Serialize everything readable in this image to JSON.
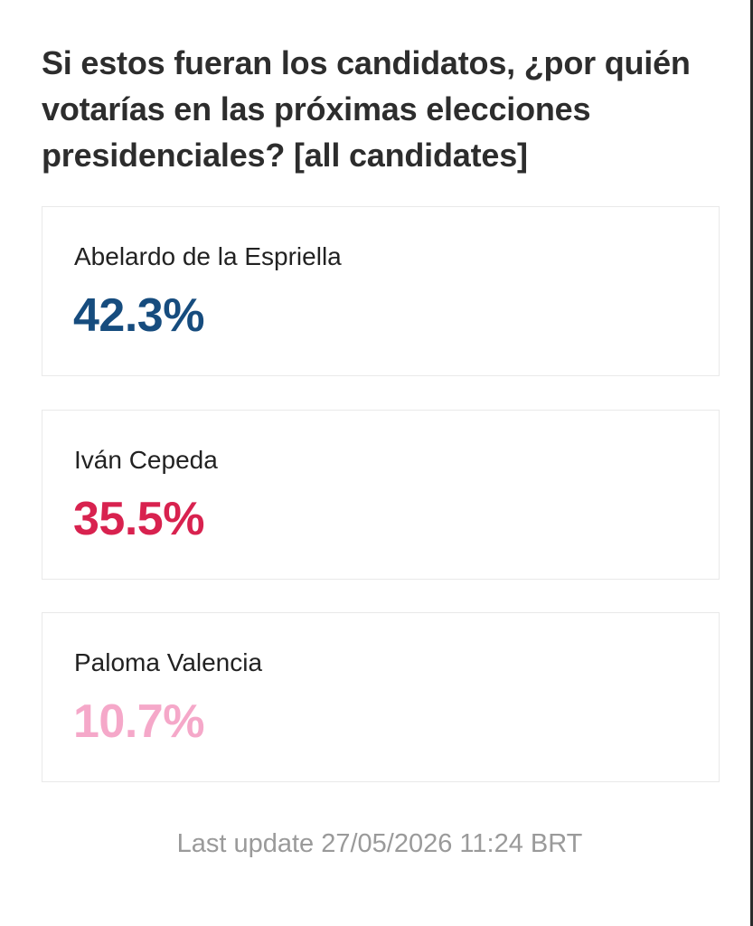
{
  "poll": {
    "question": "Si estos fueran los candidatos, ¿por quién votarías en las próximas elecciones presidenciales? [all candidates]",
    "candidates": [
      {
        "name": "Abelardo de la Espriella",
        "percent": "42.3%",
        "color": "#164c7e"
      },
      {
        "name": "Iván Cepeda",
        "percent": "35.5%",
        "color": "#d8224f"
      },
      {
        "name": "Paloma Valencia",
        "percent": "10.7%",
        "color": "#f5a8c9"
      }
    ]
  },
  "footer": {
    "last_update": "Last update 27/05/2026 11:24 BRT"
  }
}
